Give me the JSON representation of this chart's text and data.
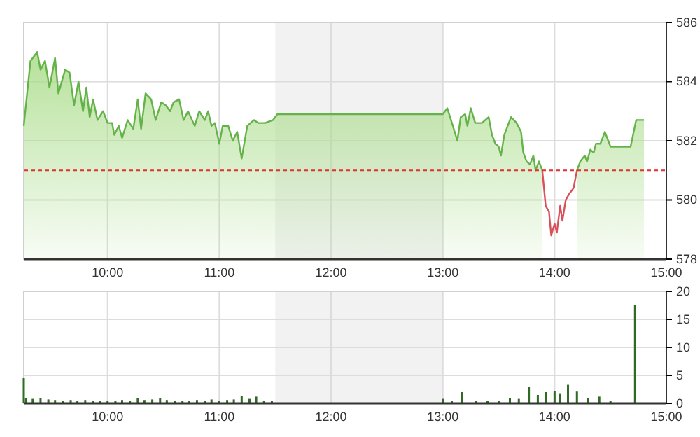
{
  "chart_data": [
    {
      "type": "area",
      "xlim": [
        9.25,
        15
      ],
      "xticks": [
        {
          "value": 10,
          "label": "10:00"
        },
        {
          "value": 11,
          "label": "11:00"
        },
        {
          "value": 12,
          "label": "12:00"
        },
        {
          "value": 13,
          "label": "13:00"
        },
        {
          "value": 14,
          "label": "14:00"
        },
        {
          "value": 15,
          "label": "15:00"
        }
      ],
      "ylim": [
        578,
        586
      ],
      "yticks": [
        578,
        580,
        582,
        584,
        586
      ],
      "grid": true,
      "bands": [
        {
          "axis": "x",
          "from": 11.5,
          "to": 13,
          "color": "#f2f2f2"
        }
      ],
      "ref_lines": [
        {
          "axis": "y",
          "value": 581,
          "color": "#e03030",
          "line_style": "dashed"
        }
      ],
      "series": [
        {
          "color": "#66b24a",
          "x": [
            9.25,
            9.31,
            9.37,
            9.4,
            9.44,
            9.48,
            9.53,
            9.56,
            9.62,
            9.66,
            9.7,
            9.74,
            9.78,
            9.81,
            9.84,
            9.87,
            9.91,
            9.96,
            10.0,
            10.04,
            10.06,
            10.1,
            10.13,
            10.18,
            10.23,
            10.27,
            10.3,
            10.34,
            10.39,
            10.43,
            10.48,
            10.52,
            10.56,
            10.59,
            10.64,
            10.68,
            10.72,
            10.78,
            10.82,
            10.87,
            10.9,
            10.93,
            10.96,
            11.0,
            11.03,
            11.08,
            11.12,
            11.16,
            11.2,
            11.25,
            11.31,
            11.35,
            11.41,
            11.48,
            11.52,
            13.0,
            13.04,
            13.09,
            13.13,
            13.16,
            13.2,
            13.22,
            13.25,
            13.29,
            13.35,
            13.41,
            13.44,
            13.47,
            13.5,
            13.52,
            13.55,
            13.61,
            13.66,
            13.7,
            13.72,
            13.75,
            13.78,
            13.81,
            13.83,
            13.86,
            13.89,
            14.0,
            14.2,
            14.23,
            14.27,
            14.29,
            14.32,
            14.35,
            14.37,
            14.41,
            14.45,
            14.5,
            14.68,
            14.73,
            14.8
          ],
          "values": [
            582.5,
            584.7,
            585.0,
            584.4,
            584.7,
            583.8,
            584.8,
            583.6,
            584.4,
            584.3,
            583.2,
            584.0,
            583.0,
            583.8,
            582.8,
            583.4,
            582.7,
            583.0,
            582.6,
            582.6,
            582.2,
            582.5,
            582.1,
            582.7,
            582.4,
            583.4,
            582.4,
            583.6,
            583.4,
            582.7,
            583.3,
            583.2,
            583.0,
            583.3,
            583.4,
            582.7,
            583.0,
            582.5,
            583.0,
            582.7,
            583.0,
            582.5,
            582.6,
            581.9,
            582.5,
            582.5,
            582.0,
            582.3,
            581.4,
            582.5,
            582.7,
            582.6,
            582.6,
            582.7,
            582.9,
            582.9,
            583.1,
            582.5,
            582.0,
            582.8,
            582.9,
            582.5,
            583.1,
            582.6,
            582.6,
            582.8,
            582.2,
            581.9,
            581.8,
            581.5,
            582.2,
            582.8,
            582.6,
            582.3,
            581.6,
            581.3,
            581.2,
            581.5,
            581.0,
            581.3,
            581.0,
            null,
            581.0,
            581.3,
            581.5,
            581.3,
            581.7,
            581.6,
            581.9,
            581.9,
            582.3,
            581.8,
            581.8,
            582.7,
            582.7
          ]
        },
        {
          "type": "line",
          "color": "#d9505a",
          "x": [
            13.89,
            13.92,
            13.95,
            13.97,
            14.0,
            14.02,
            14.05,
            14.07,
            14.1,
            14.13,
            14.17,
            14.2
          ],
          "values": [
            581.0,
            579.8,
            579.6,
            578.8,
            579.2,
            578.9,
            579.8,
            579.3,
            580.0,
            580.2,
            580.4,
            581.0
          ]
        }
      ]
    },
    {
      "type": "bar",
      "xlim": [
        9.25,
        15
      ],
      "xticks": [
        {
          "value": 10,
          "label": "10:00"
        },
        {
          "value": 11,
          "label": "11:00"
        },
        {
          "value": 12,
          "label": "12:00"
        },
        {
          "value": 13,
          "label": "13:00"
        },
        {
          "value": 14,
          "label": "14:00"
        },
        {
          "value": 15,
          "label": "15:00"
        }
      ],
      "ylim": [
        0,
        20
      ],
      "yticks": [
        0,
        5,
        10,
        15,
        20
      ],
      "grid": true,
      "bands": [
        {
          "axis": "x",
          "from": 11.5,
          "to": 13,
          "color": "#f2f2f2"
        }
      ],
      "series": [
        {
          "color": "#2f6b22",
          "x": [
            9.25,
            9.27,
            9.33,
            9.4,
            9.47,
            9.53,
            9.6,
            9.67,
            9.73,
            9.8,
            9.87,
            9.93,
            10.0,
            10.07,
            10.13,
            10.2,
            10.27,
            10.33,
            10.4,
            10.47,
            10.53,
            10.6,
            10.67,
            10.73,
            10.8,
            10.87,
            10.93,
            11.0,
            11.07,
            11.13,
            11.2,
            11.27,
            11.33,
            11.4,
            11.47,
            13.0,
            13.08,
            13.17,
            13.3,
            13.4,
            13.5,
            13.6,
            13.68,
            13.77,
            13.85,
            13.92,
            14.0,
            14.05,
            14.12,
            14.2,
            14.3,
            14.4,
            14.5,
            14.72
          ],
          "values": [
            4.5,
            0.9,
            0.8,
            0.9,
            0.7,
            0.6,
            0.5,
            0.6,
            0.5,
            0.6,
            0.5,
            0.5,
            0.4,
            0.5,
            0.6,
            0.5,
            0.9,
            0.6,
            0.7,
            0.9,
            0.6,
            0.5,
            0.4,
            0.5,
            0.6,
            0.5,
            0.7,
            0.5,
            0.6,
            0.7,
            1.3,
            0.8,
            1.2,
            0.4,
            0.5,
            0.8,
            0.4,
            2.0,
            0.5,
            0.5,
            0.5,
            1.0,
            0.8,
            3.0,
            1.5,
            2.0,
            2.2,
            1.8,
            3.3,
            2.1,
            1.0,
            1.2,
            0.4,
            17.5
          ]
        }
      ]
    }
  ]
}
